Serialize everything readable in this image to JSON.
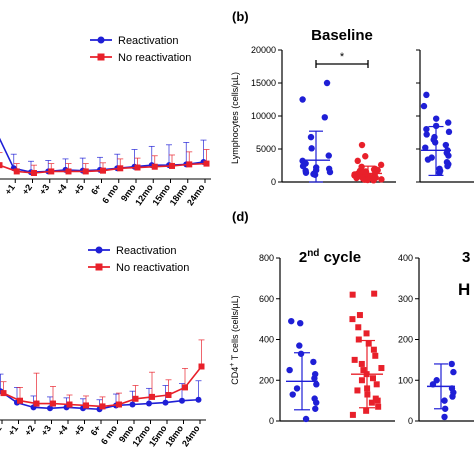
{
  "colors": {
    "blue": "#1f1fd6",
    "red": "#e8202a",
    "axis": "#000000"
  },
  "chart_data": [
    {
      "id": "line-top",
      "type": "line",
      "categories": [
        "",
        "+1",
        "+2",
        "+3",
        "+4",
        "+5",
        "6+",
        "6 mo",
        "9mo",
        "12mo",
        "15mo",
        "18mo",
        "24mo"
      ],
      "series": [
        {
          "name": "Reactivation",
          "values": [
            2.6,
            0.3,
            0.05,
            0.1,
            0.2,
            0.15,
            0.2,
            0.3,
            0.4,
            0.5,
            0.5,
            0.55,
            0.7
          ],
          "err": [
            1.5,
            0.9,
            0.7,
            0.7,
            0.7,
            0.8,
            0.8,
            0.9,
            1.1,
            1.2,
            1.3,
            1.4,
            1.4
          ]
        },
        {
          "name": "No reactivation",
          "values": [
            0.5,
            0.1,
            0.0,
            0.1,
            0.1,
            0.1,
            0.15,
            0.3,
            0.35,
            0.4,
            0.45,
            0.55,
            0.6
          ],
          "err": [
            0.8,
            0.5,
            0.5,
            0.5,
            0.5,
            0.5,
            0.5,
            0.6,
            0.6,
            0.7,
            0.7,
            0.8,
            0.9
          ]
        }
      ],
      "ylim": [
        0,
        3
      ],
      "legend": "top-right"
    },
    {
      "id": "line-bottom",
      "type": "line",
      "categories": [
        "=1",
        "+1",
        "+2",
        "+3",
        "+4",
        "+5",
        "6+",
        "6 mo",
        "9mo",
        "12mo",
        "15mo",
        "18mo",
        "24mo"
      ],
      "series": [
        {
          "name": "Reactivation",
          "values": [
            1.2,
            0.6,
            0.35,
            0.3,
            0.35,
            0.3,
            0.25,
            0.45,
            0.5,
            0.55,
            0.6,
            0.7,
            0.75
          ],
          "err": [
            0.9,
            0.8,
            0.6,
            0.6,
            0.5,
            0.5,
            0.5,
            0.6,
            0.7,
            0.8,
            0.9,
            0.9,
            1.0
          ]
        },
        {
          "name": "No reactivation",
          "values": [
            1.1,
            0.7,
            0.55,
            0.55,
            0.5,
            0.45,
            0.4,
            0.5,
            0.8,
            0.9,
            1.0,
            1.4,
            2.5
          ],
          "err": [
            0.6,
            0.7,
            1.6,
            0.9,
            0.5,
            0.5,
            0.5,
            0.6,
            0.7,
            1.3,
            0.8,
            1.0,
            1.4
          ]
        }
      ],
      "ylim": [
        0,
        4
      ],
      "legend": "top-right"
    },
    {
      "id": "scatter-b",
      "type": "scatter",
      "panel_label": "(b)",
      "title": "Baseline",
      "ylabel": "Lymphocytes (cells/µL)",
      "ylim": [
        0,
        20000
      ],
      "yticks": [
        "0",
        "5000",
        "10000",
        "15000",
        "20000"
      ],
      "significance": "*",
      "groups": [
        {
          "color": "blue",
          "shape": "circle",
          "mean": 3300,
          "sd_upper": 7700,
          "sd_lower": 0,
          "values": [
            15000,
            12500,
            9800,
            6800,
            5100,
            4000,
            3200,
            2800,
            2400,
            2200,
            2000,
            1800,
            1700,
            1500,
            1400,
            1300,
            1200,
            1100
          ]
        },
        {
          "color": "red",
          "shape": "circle",
          "mean": 1300,
          "sd_upper": 2400,
          "sd_lower": 200,
          "values": [
            5600,
            3900,
            3200,
            2600,
            2300,
            2000,
            1900,
            1800,
            1700,
            1600,
            1500,
            1400,
            1350,
            1300,
            1200,
            1150,
            1100,
            1000,
            950,
            900,
            850,
            800,
            700,
            650,
            600,
            500,
            400,
            350,
            300,
            250
          ]
        }
      ]
    },
    {
      "id": "scatter-b2",
      "type": "scatter",
      "ylim": [
        0,
        2000
      ],
      "groups": [
        {
          "color": "blue",
          "shape": "circle",
          "mean": 480,
          "sd_upper": 840,
          "sd_lower": 100,
          "values": [
            1320,
            1150,
            960,
            900,
            850,
            800,
            760,
            720,
            680,
            640,
            600,
            560,
            520,
            480,
            440,
            400,
            370,
            340,
            300,
            270,
            240,
            200,
            170,
            140
          ]
        }
      ]
    },
    {
      "id": "scatter-d",
      "type": "scatter",
      "panel_label": "(d)",
      "title_main": "2",
      "title_sup": "nd",
      "title_rest": " cycle",
      "ylabel_main": "CD4",
      "ylabel_sup": "+",
      "ylabel_rest": " T cells (cells/µL)",
      "ylim": [
        0,
        800
      ],
      "yticks": [
        "0",
        "200",
        "400",
        "600",
        "800"
      ],
      "groups": [
        {
          "color": "blue",
          "shape": "circle",
          "mean": 195,
          "sd_upper": 335,
          "sd_lower": 55,
          "values": [
            490,
            480,
            370,
            330,
            290,
            250,
            230,
            210,
            180,
            160,
            130,
            110,
            90,
            60,
            10
          ]
        },
        {
          "color": "red",
          "shape": "square",
          "mean": 230,
          "sd_upper": 395,
          "sd_lower": 65,
          "values": [
            625,
            620,
            520,
            500,
            460,
            430,
            400,
            380,
            350,
            320,
            300,
            280,
            260,
            250,
            230,
            210,
            200,
            180,
            160,
            150,
            130,
            110,
            100,
            90,
            70,
            50,
            30
          ]
        }
      ]
    },
    {
      "id": "scatter-d2",
      "type": "scatter",
      "title": "3",
      "subtitle": "H",
      "ylim": [
        0,
        400
      ],
      "yticks": [
        "0",
        "100",
        "200",
        "300",
        "400"
      ],
      "groups": [
        {
          "color": "blue",
          "shape": "circle",
          "mean": 85,
          "sd_upper": 140,
          "sd_lower": 30,
          "values": [
            140,
            120,
            100,
            90,
            80,
            70,
            60,
            50,
            30,
            10
          ]
        }
      ]
    }
  ]
}
